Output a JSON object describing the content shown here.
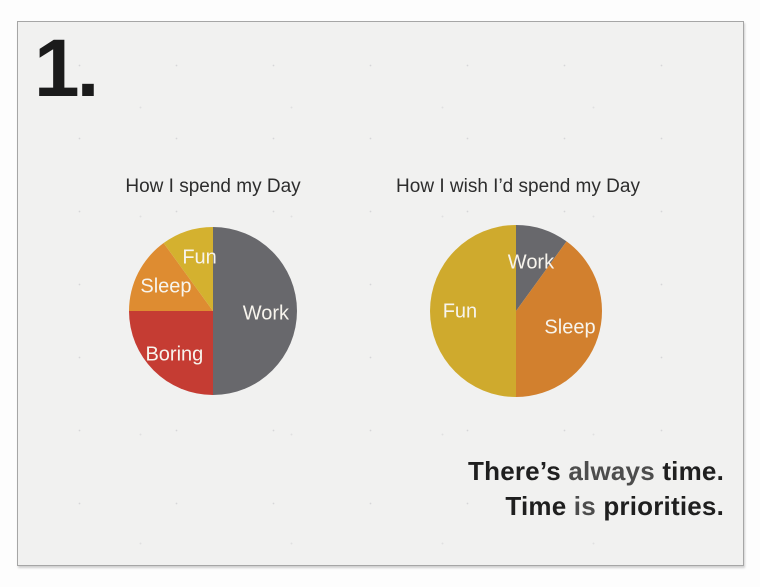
{
  "slide": {
    "number_label": "1.",
    "quote": {
      "line1": {
        "pre": "There’s ",
        "emph": "always",
        "post": " time."
      },
      "line2": {
        "pre": "Time ",
        "emph": "is",
        "post": " priorities."
      }
    }
  },
  "colors": {
    "work_gray": "#68686c",
    "boring_red": "#c53c33",
    "sleep_orange_left": "#de8c31",
    "fun_yellow_left": "#d4b12f",
    "sleep_orange_right": "#d2802e",
    "fun_yellow_right": "#cfaa2d",
    "slide_background": "#f1f1f0",
    "label_text": "#f7f4ed"
  },
  "chart_data": [
    {
      "type": "pie",
      "title": "How I spend my Day",
      "start_angle_deg": 0,
      "unit": "percent",
      "slices": [
        {
          "label": "Work",
          "value": 50,
          "color": "#68686c",
          "label_pos": [
            81.5,
            51.8
          ]
        },
        {
          "label": "Boring",
          "value": 25,
          "color": "#c53c33",
          "label_pos": [
            27.0,
            76.0
          ]
        },
        {
          "label": "Sleep",
          "value": 15,
          "color": "#de8c31",
          "label_pos": [
            22.0,
            35.7
          ]
        },
        {
          "label": "Fun",
          "value": 10,
          "color": "#d4b12f",
          "label_pos": [
            42.0,
            18.5
          ]
        }
      ]
    },
    {
      "type": "pie",
      "title": "How I wish I’d spend my Day",
      "start_angle_deg": 0,
      "unit": "percent",
      "slices": [
        {
          "label": "Work",
          "value": 10,
          "color": "#68686c",
          "label_pos": [
            58.7,
            22.1
          ]
        },
        {
          "label": "Sleep",
          "value": 40,
          "color": "#d2802e",
          "label_pos": [
            81.4,
            59.9
          ]
        },
        {
          "label": "Fun",
          "value": 50,
          "color": "#cfaa2d",
          "label_pos": [
            17.4,
            50.6
          ]
        }
      ]
    }
  ]
}
